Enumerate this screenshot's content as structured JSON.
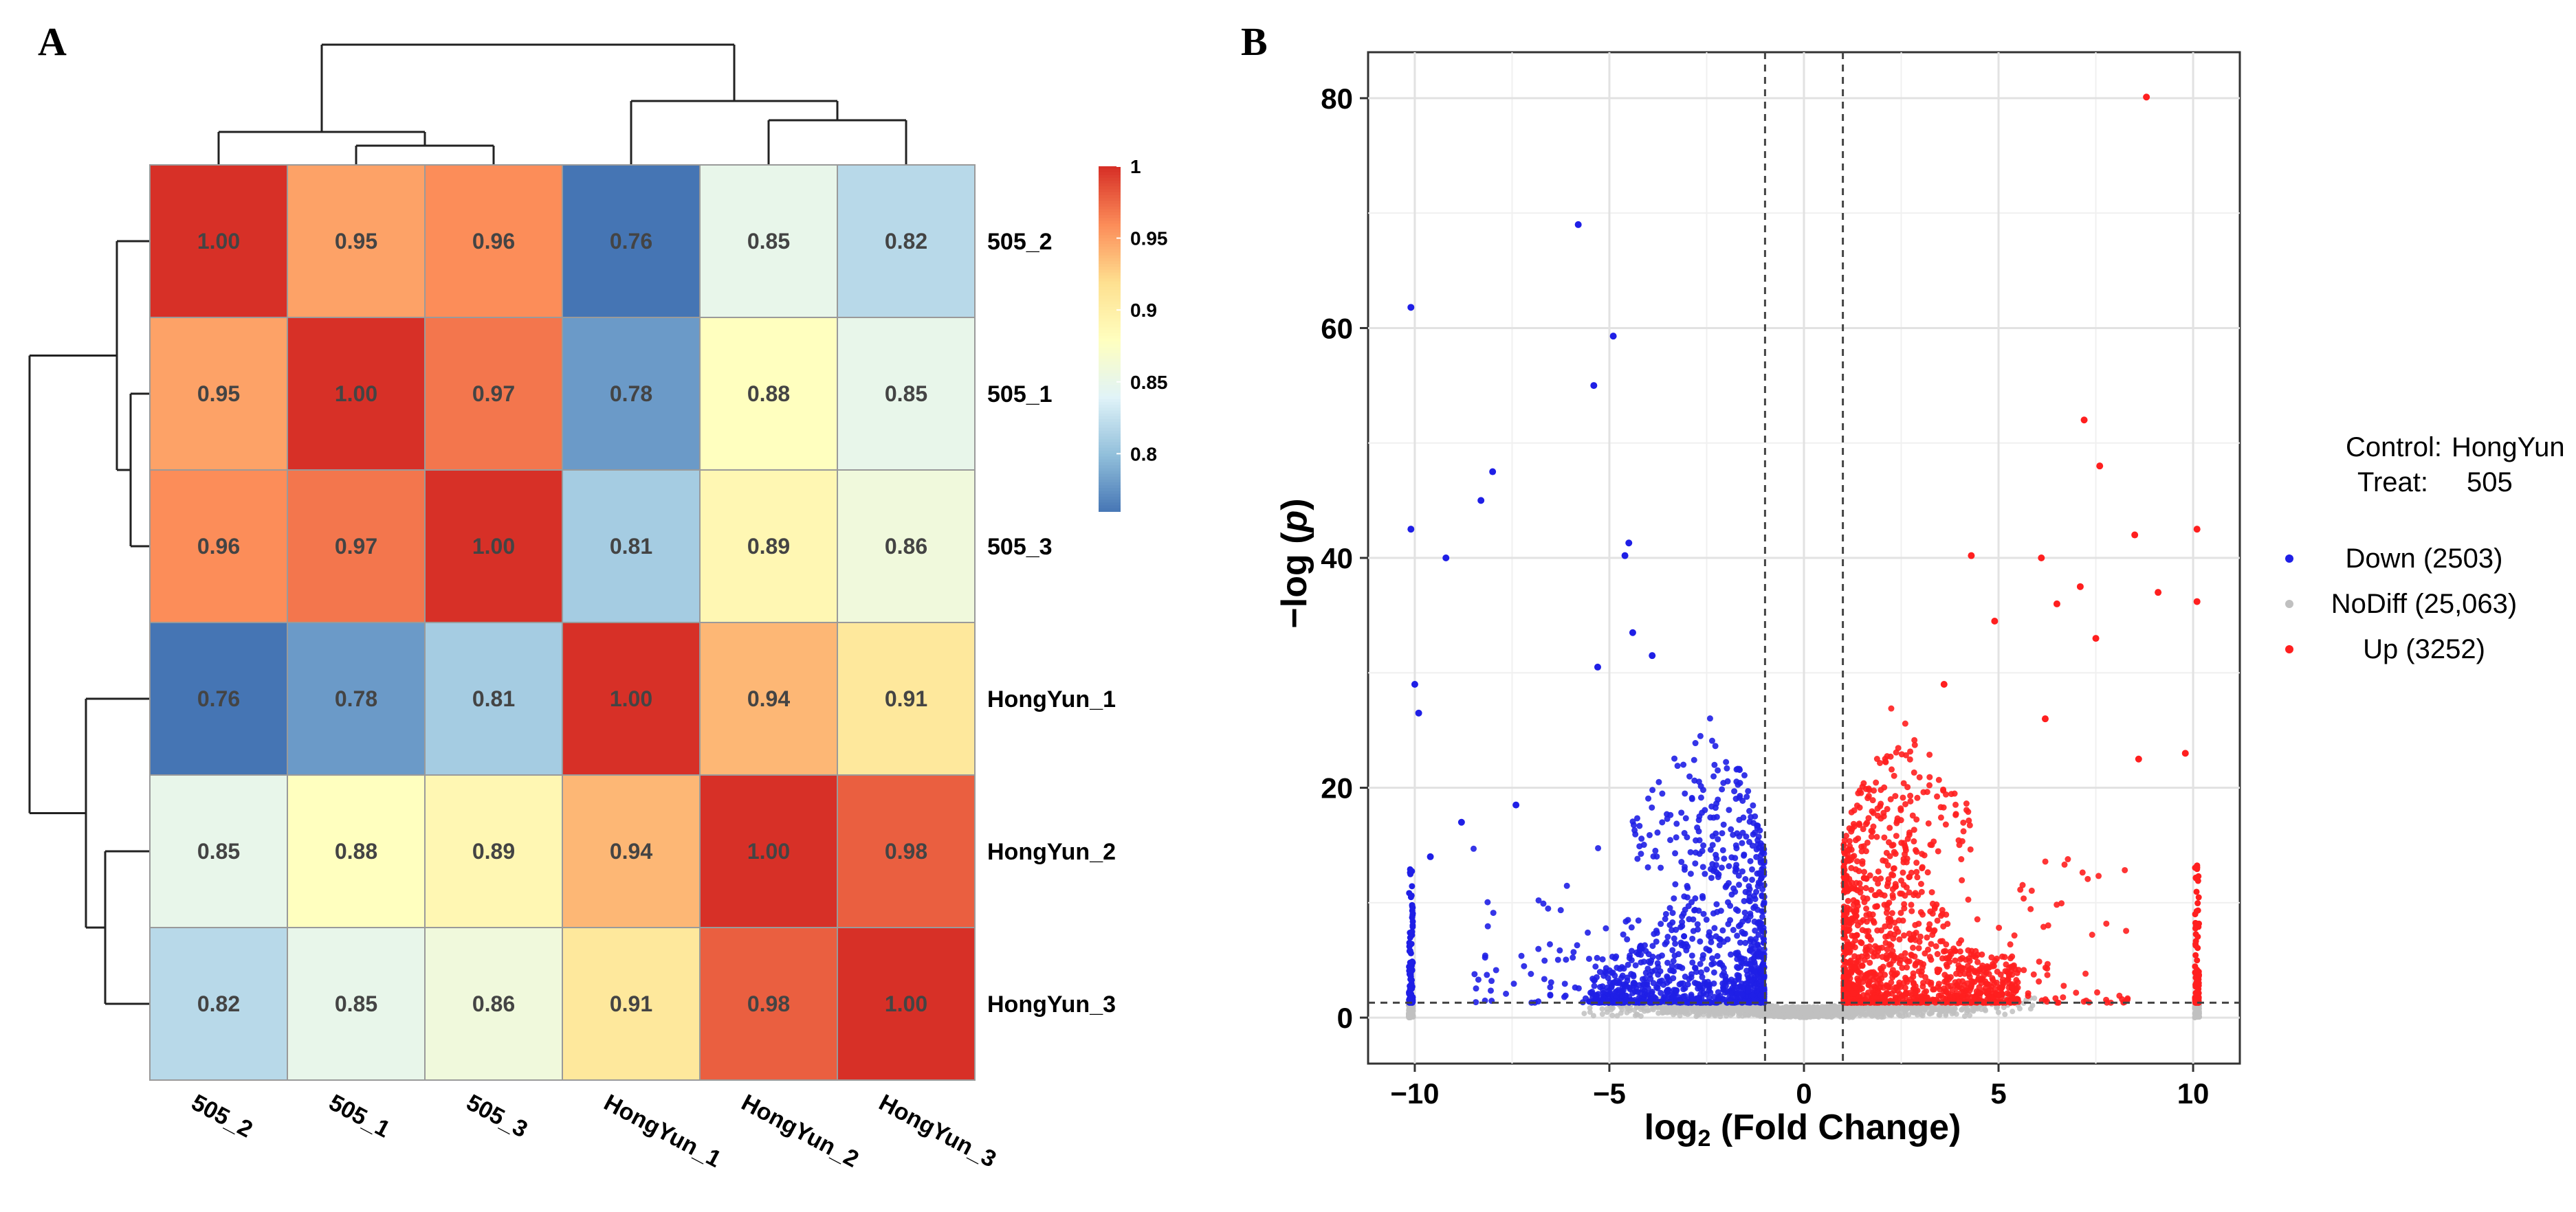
{
  "panel_labels": {
    "a": "A",
    "b": "B"
  },
  "chart_data": [
    {
      "type": "heatmap",
      "title": "",
      "rows": [
        "505_2",
        "505_1",
        "505_3",
        "HongYun_1",
        "HongYun_2",
        "HongYun_3"
      ],
      "columns": [
        "505_2",
        "505_1",
        "505_3",
        "HongYun_1",
        "HongYun_2",
        "HongYun_3"
      ],
      "values": [
        [
          1.0,
          0.95,
          0.96,
          0.76,
          0.85,
          0.82
        ],
        [
          0.95,
          1.0,
          0.97,
          0.78,
          0.88,
          0.85
        ],
        [
          0.96,
          0.97,
          1.0,
          0.81,
          0.89,
          0.86
        ],
        [
          0.76,
          0.78,
          0.81,
          1.0,
          0.94,
          0.91
        ],
        [
          0.85,
          0.88,
          0.89,
          0.94,
          1.0,
          0.98
        ],
        [
          0.82,
          0.85,
          0.86,
          0.91,
          0.98,
          1.0
        ]
      ],
      "value_labels": [
        [
          "1.00",
          "0.95",
          "0.96",
          "0.76",
          "0.85",
          "0.82"
        ],
        [
          "0.95",
          "1.00",
          "0.97",
          "0.78",
          "0.88",
          "0.85"
        ],
        [
          "0.96",
          "0.97",
          "1.00",
          "0.81",
          "0.89",
          "0.86"
        ],
        [
          "0.76",
          "0.78",
          "0.81",
          "1.00",
          "0.94",
          "0.91"
        ],
        [
          "0.85",
          "0.88",
          "0.89",
          "0.94",
          "1.00",
          "0.98"
        ],
        [
          "0.82",
          "0.85",
          "0.86",
          "0.91",
          "0.98",
          "1.00"
        ]
      ],
      "colorbar": {
        "range": [
          0.76,
          1.0
        ],
        "ticks": [
          1,
          0.95,
          0.9,
          0.85,
          0.8
        ],
        "tick_labels": [
          "1",
          "0.95",
          "0.9",
          "0.85",
          "0.8"
        ],
        "colors": [
          "#4575b4",
          "#91bfdb",
          "#e0f3f8",
          "#ffffbf",
          "#fee090",
          "#fc8d59",
          "#d73027"
        ]
      },
      "dendrogram": "hierarchical clustering on rows and columns"
    },
    {
      "type": "scatter",
      "title": "",
      "xlabel_main": "log",
      "xlabel_sub": "2",
      "xlabel_rest": " (Fold Change)",
      "ylabel_pre": "−log (",
      "ylabel_italic": "p",
      "ylabel_post": ")",
      "xlim": [
        -11.2,
        11.2
      ],
      "ylim": [
        -4,
        84
      ],
      "xticks": [
        -10,
        -5,
        0,
        5,
        10
      ],
      "xtick_labels": [
        "−10",
        "−5",
        "0",
        "5",
        "10"
      ],
      "yticks": [
        0,
        20,
        40,
        60,
        80
      ],
      "ytick_labels": [
        "0",
        "20",
        "40",
        "60",
        "80"
      ],
      "fc_threshold_lines_x": [
        -1,
        1
      ],
      "p_threshold_line_y": 1.3,
      "grid": true,
      "legend_header": {
        "control_label": "Control:",
        "control_value": "HongYun",
        "treat_label": "Treat:",
        "treat_value": "505"
      },
      "series": [
        {
          "name": "Down (2503)",
          "color": "#1f1fe6",
          "count": 2503
        },
        {
          "name": "NoDiff (25,063)",
          "color": "#c0c0c0",
          "count": 25063
        },
        {
          "name": "Up (3252)",
          "color": "#ff1f1f",
          "count": 3252
        }
      ],
      "highlight_points": [
        {
          "x": 8.8,
          "y": 80.1,
          "series": "Up"
        },
        {
          "x": 7.2,
          "y": 52,
          "series": "Up"
        },
        {
          "x": 7.6,
          "y": 48,
          "series": "Up"
        },
        {
          "x": 8.5,
          "y": 42,
          "series": "Up"
        },
        {
          "x": 10.1,
          "y": 42.5,
          "series": "Up"
        },
        {
          "x": 4.3,
          "y": 40.2,
          "series": "Up"
        },
        {
          "x": 6.1,
          "y": 40,
          "series": "Up"
        },
        {
          "x": 7.1,
          "y": 37.5,
          "series": "Up"
        },
        {
          "x": 9.1,
          "y": 37,
          "series": "Up"
        },
        {
          "x": 6.5,
          "y": 36,
          "series": "Up"
        },
        {
          "x": 10.1,
          "y": 36.2,
          "series": "Up"
        },
        {
          "x": 4.9,
          "y": 34.5,
          "series": "Up"
        },
        {
          "x": 7.5,
          "y": 33,
          "series": "Up"
        },
        {
          "x": 3.6,
          "y": 29,
          "series": "Up"
        },
        {
          "x": 6.2,
          "y": 26,
          "series": "Up"
        },
        {
          "x": 8.6,
          "y": 22.5,
          "series": "Up"
        },
        {
          "x": 9.8,
          "y": 23,
          "series": "Up"
        },
        {
          "x": -5.8,
          "y": 69,
          "series": "Down"
        },
        {
          "x": -10.1,
          "y": 61.8,
          "series": "Down"
        },
        {
          "x": -4.9,
          "y": 59.3,
          "series": "Down"
        },
        {
          "x": -5.4,
          "y": 55,
          "series": "Down"
        },
        {
          "x": -8.0,
          "y": 47.5,
          "series": "Down"
        },
        {
          "x": -8.3,
          "y": 45,
          "series": "Down"
        },
        {
          "x": -10.1,
          "y": 42.5,
          "series": "Down"
        },
        {
          "x": -4.5,
          "y": 41.3,
          "series": "Down"
        },
        {
          "x": -9.2,
          "y": 40,
          "series": "Down"
        },
        {
          "x": -4.6,
          "y": 40.2,
          "series": "Down"
        },
        {
          "x": -4.4,
          "y": 33.5,
          "series": "Down"
        },
        {
          "x": -3.9,
          "y": 31.5,
          "series": "Down"
        },
        {
          "x": -5.3,
          "y": 30.5,
          "series": "Down"
        },
        {
          "x": -10.0,
          "y": 29,
          "series": "Down"
        },
        {
          "x": -9.9,
          "y": 26.5,
          "series": "Down"
        },
        {
          "x": -9.6,
          "y": 14,
          "series": "Down"
        },
        {
          "x": -7.4,
          "y": 18.5,
          "series": "Down"
        },
        {
          "x": -8.8,
          "y": 17,
          "series": "Down"
        }
      ]
    }
  ]
}
